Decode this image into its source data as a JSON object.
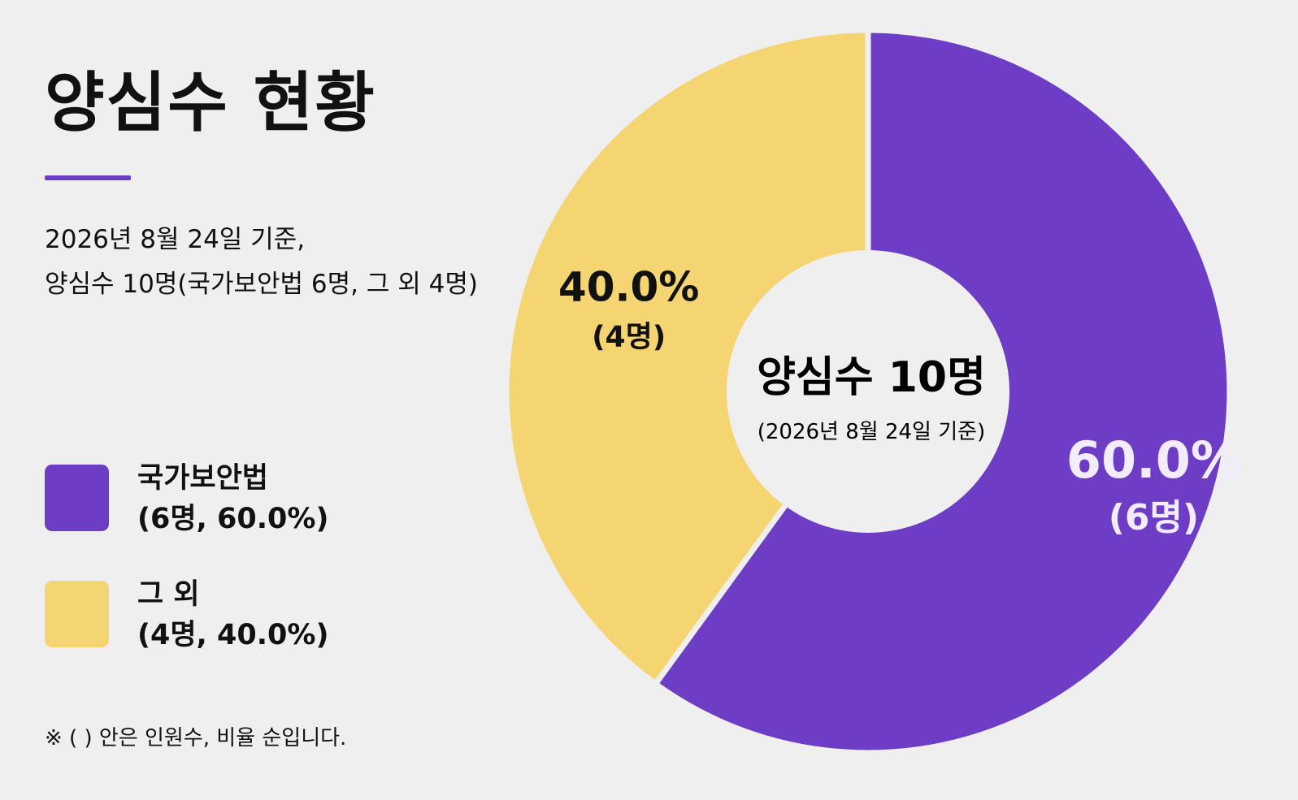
{
  "title": "양심수 현황",
  "subtitle_lines": [
    "2026년 8월 24일 기준,",
    "양심수 10명(국가보안법 6명, 그 외 4명)"
  ],
  "legend": [
    {
      "line1": "국가보안법",
      "line2": "(6명, 60.0%)",
      "color": "#6e3dc6"
    },
    {
      "line1": "그 외",
      "line2": "(4명, 40.0%)",
      "color": "#f5d572"
    }
  ],
  "note": "※ ( ) 안은 인원수, 비율 순입니다.",
  "chart_data": {
    "type": "pie",
    "donut": true,
    "center_label": "양심수 10명",
    "center_sublabel": "(2026년 8월 24일 기준)",
    "categories": [
      "국가보안법",
      "그 외"
    ],
    "values": [
      6,
      4
    ],
    "percent_labels": [
      "60.0%",
      "40.0%"
    ],
    "count_labels": [
      "(6명)",
      "(4명)"
    ],
    "colors": [
      "#6e3dc6",
      "#f5d572"
    ],
    "label_colors": [
      "#f2ecff",
      "#111111"
    ],
    "start": "12 o'clock",
    "direction": "clockwise"
  }
}
